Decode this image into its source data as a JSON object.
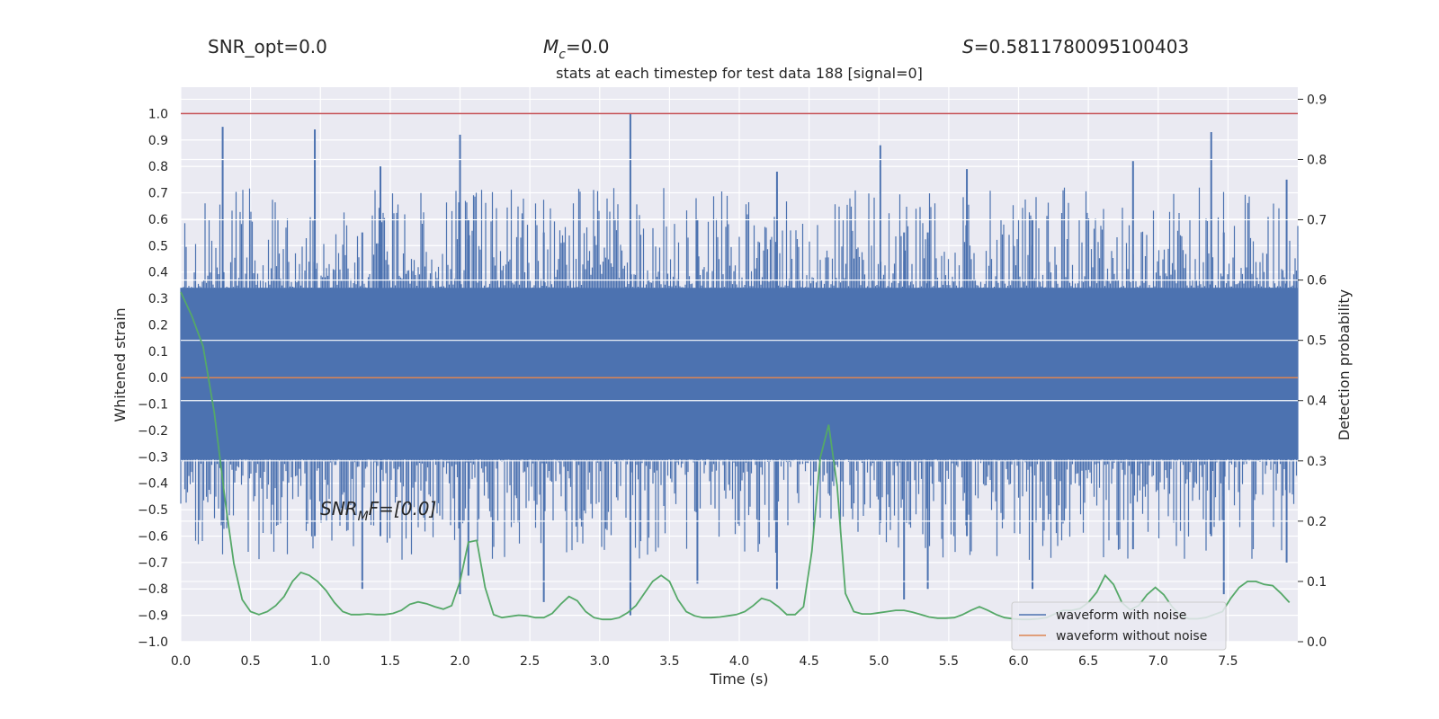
{
  "header": {
    "snr_opt": "SNR_opt=0.0",
    "mc": "=0.0",
    "mc_symbol": "M",
    "mc_sub": "c",
    "s_value": "=0.5811780095100403",
    "s_symbol": "S"
  },
  "annotation": {
    "snr_mf_symbol": "SNR",
    "snr_mf_sub": "M",
    "snr_mf_rest": "F=[0.0]"
  },
  "colors": {
    "background": "#eaeaf2",
    "grid": "#ffffff",
    "noise": "#4c72b0",
    "clean": "#dd8452",
    "prob": "#55a868",
    "threshold": "#c44e52"
  },
  "chart_data": {
    "type": "line",
    "title": "stats at each timestep for test data 188 [signal=0]",
    "xlabel": "Time (s)",
    "ylabel_left": "Whitened strain",
    "ylabel_right": "Detection probability",
    "xlim": [
      0.0,
      8.0
    ],
    "ylim_left": [
      -1.0,
      1.1
    ],
    "ylim_right": [
      -0.0,
      0.92
    ],
    "xticks": [
      "0.0",
      "0.5",
      "1.0",
      "1.5",
      "2.0",
      "2.5",
      "3.0",
      "3.5",
      "4.0",
      "4.5",
      "5.0",
      "5.5",
      "6.0",
      "6.5",
      "7.0",
      "7.5"
    ],
    "xtick_values": [
      0.0,
      0.5,
      1.0,
      1.5,
      2.0,
      2.5,
      3.0,
      3.5,
      4.0,
      4.5,
      5.0,
      5.5,
      6.0,
      6.5,
      7.0,
      7.5
    ],
    "yticks_left": [
      "1.0",
      "0.9",
      "0.8",
      "0.7",
      "0.6",
      "0.5",
      "0.4",
      "0.3",
      "0.2",
      "0.1",
      "0.0",
      "−0.1",
      "−0.2",
      "−0.3",
      "−0.4",
      "−0.5",
      "−0.6",
      "−0.7",
      "−0.8",
      "−0.9",
      "−1.0"
    ],
    "ytick_left_values": [
      1.0,
      0.9,
      0.8,
      0.7,
      0.6,
      0.5,
      0.4,
      0.3,
      0.2,
      0.1,
      0.0,
      -0.1,
      -0.2,
      -0.3,
      -0.4,
      -0.5,
      -0.6,
      -0.7,
      -0.8,
      -0.9,
      -1.0
    ],
    "yticks_right": [
      "0.9",
      "0.8",
      "0.7",
      "0.6",
      "0.5",
      "0.4",
      "0.3",
      "0.2",
      "0.1",
      "0.0"
    ],
    "ytick_right_values": [
      0.9,
      0.8,
      0.7,
      0.6,
      0.5,
      0.4,
      0.3,
      0.2,
      0.1,
      0.0
    ],
    "threshold_left": 1.0,
    "noise_spikes": [
      {
        "t": 0.3,
        "top": 0.95,
        "bottom": -0.55
      },
      {
        "t": 0.96,
        "top": 0.94,
        "bottom": -0.6
      },
      {
        "t": 1.3,
        "top": 0.55,
        "bottom": -0.8
      },
      {
        "t": 1.43,
        "top": 0.8,
        "bottom": -0.6
      },
      {
        "t": 2.0,
        "top": 0.92,
        "bottom": -0.82
      },
      {
        "t": 2.06,
        "top": 0.6,
        "bottom": -0.75
      },
      {
        "t": 2.6,
        "top": 0.55,
        "bottom": -0.85
      },
      {
        "t": 3.22,
        "top": 1.0,
        "bottom": -0.9
      },
      {
        "t": 3.7,
        "top": 0.6,
        "bottom": -0.78
      },
      {
        "t": 4.27,
        "top": 0.78,
        "bottom": -0.8
      },
      {
        "t": 5.01,
        "top": 0.88,
        "bottom": -0.55
      },
      {
        "t": 5.18,
        "top": 0.55,
        "bottom": -0.84
      },
      {
        "t": 5.35,
        "top": 0.55,
        "bottom": -0.8
      },
      {
        "t": 5.63,
        "top": 0.79,
        "bottom": -0.6
      },
      {
        "t": 6.1,
        "top": 0.6,
        "bottom": -0.8
      },
      {
        "t": 6.82,
        "top": 0.82,
        "bottom": -0.65
      },
      {
        "t": 7.38,
        "top": 0.93,
        "bottom": -0.6
      },
      {
        "t": 7.47,
        "top": 0.55,
        "bottom": -0.82
      },
      {
        "t": 7.92,
        "top": 0.75,
        "bottom": -0.7
      }
    ],
    "series": [
      {
        "name": "waveform with noise",
        "color": "#4c72b0",
        "axis": "left",
        "x": [],
        "values": []
      },
      {
        "name": "waveform without noise",
        "color": "#dd8452",
        "axis": "left",
        "x": [
          0.0,
          8.0
        ],
        "values": [
          0.0,
          0.0
        ]
      },
      {
        "name": "detection probability",
        "color": "#55a868",
        "axis": "right",
        "x": [
          0.0,
          0.08,
          0.16,
          0.24,
          0.32,
          0.38,
          0.44,
          0.5,
          0.56,
          0.62,
          0.68,
          0.74,
          0.8,
          0.86,
          0.92,
          0.98,
          1.04,
          1.1,
          1.16,
          1.22,
          1.28,
          1.34,
          1.4,
          1.46,
          1.52,
          1.58,
          1.64,
          1.7,
          1.76,
          1.82,
          1.88,
          1.94,
          2.0,
          2.06,
          2.12,
          2.18,
          2.24,
          2.3,
          2.36,
          2.42,
          2.48,
          2.54,
          2.6,
          2.66,
          2.72,
          2.78,
          2.84,
          2.9,
          2.96,
          3.02,
          3.08,
          3.14,
          3.2,
          3.26,
          3.32,
          3.38,
          3.44,
          3.5,
          3.56,
          3.62,
          3.68,
          3.74,
          3.8,
          3.86,
          3.92,
          3.98,
          4.04,
          4.1,
          4.16,
          4.22,
          4.28,
          4.34,
          4.4,
          4.46,
          4.52,
          4.58,
          4.64,
          4.7,
          4.76,
          4.82,
          4.88,
          4.94,
          5.0,
          5.06,
          5.12,
          5.18,
          5.24,
          5.3,
          5.36,
          5.42,
          5.48,
          5.54,
          5.6,
          5.66,
          5.72,
          5.78,
          5.84,
          5.9,
          5.96,
          6.02,
          6.08,
          6.14,
          6.2,
          6.26,
          6.32,
          6.38,
          6.44,
          6.5,
          6.56,
          6.62,
          6.68,
          6.74,
          6.8,
          6.86,
          6.92,
          6.98,
          7.04,
          7.1,
          7.16,
          7.22,
          7.28,
          7.34,
          7.4,
          7.46,
          7.52,
          7.58,
          7.64,
          7.7,
          7.76,
          7.82,
          7.88,
          7.94
        ],
        "values": [
          0.58,
          0.54,
          0.49,
          0.38,
          0.23,
          0.13,
          0.07,
          0.05,
          0.045,
          0.05,
          0.06,
          0.075,
          0.1,
          0.115,
          0.11,
          0.1,
          0.085,
          0.065,
          0.05,
          0.045,
          0.045,
          0.046,
          0.045,
          0.045,
          0.047,
          0.052,
          0.062,
          0.066,
          0.063,
          0.058,
          0.054,
          0.06,
          0.1,
          0.165,
          0.168,
          0.09,
          0.045,
          0.04,
          0.042,
          0.044,
          0.043,
          0.04,
          0.04,
          0.047,
          0.062,
          0.075,
          0.068,
          0.05,
          0.04,
          0.037,
          0.037,
          0.04,
          0.048,
          0.06,
          0.08,
          0.1,
          0.11,
          0.1,
          0.07,
          0.05,
          0.043,
          0.04,
          0.04,
          0.041,
          0.043,
          0.045,
          0.05,
          0.06,
          0.072,
          0.068,
          0.058,
          0.045,
          0.045,
          0.058,
          0.15,
          0.305,
          0.36,
          0.26,
          0.08,
          0.05,
          0.046,
          0.046,
          0.048,
          0.05,
          0.052,
          0.052,
          0.049,
          0.045,
          0.041,
          0.039,
          0.039,
          0.04,
          0.045,
          0.052,
          0.058,
          0.052,
          0.045,
          0.04,
          0.038,
          0.037,
          0.037,
          0.038,
          0.04,
          0.046,
          0.052,
          0.052,
          0.055,
          0.065,
          0.082,
          0.11,
          0.095,
          0.065,
          0.053,
          0.06,
          0.078,
          0.09,
          0.078,
          0.058,
          0.044,
          0.038,
          0.038,
          0.04,
          0.045,
          0.05,
          0.072,
          0.09,
          0.1,
          0.1,
          0.095,
          0.093,
          0.08,
          0.065
        ]
      }
    ],
    "legend": {
      "placement": "lower-right",
      "entries": [
        "waveform with noise",
        "waveform without noise"
      ]
    }
  }
}
